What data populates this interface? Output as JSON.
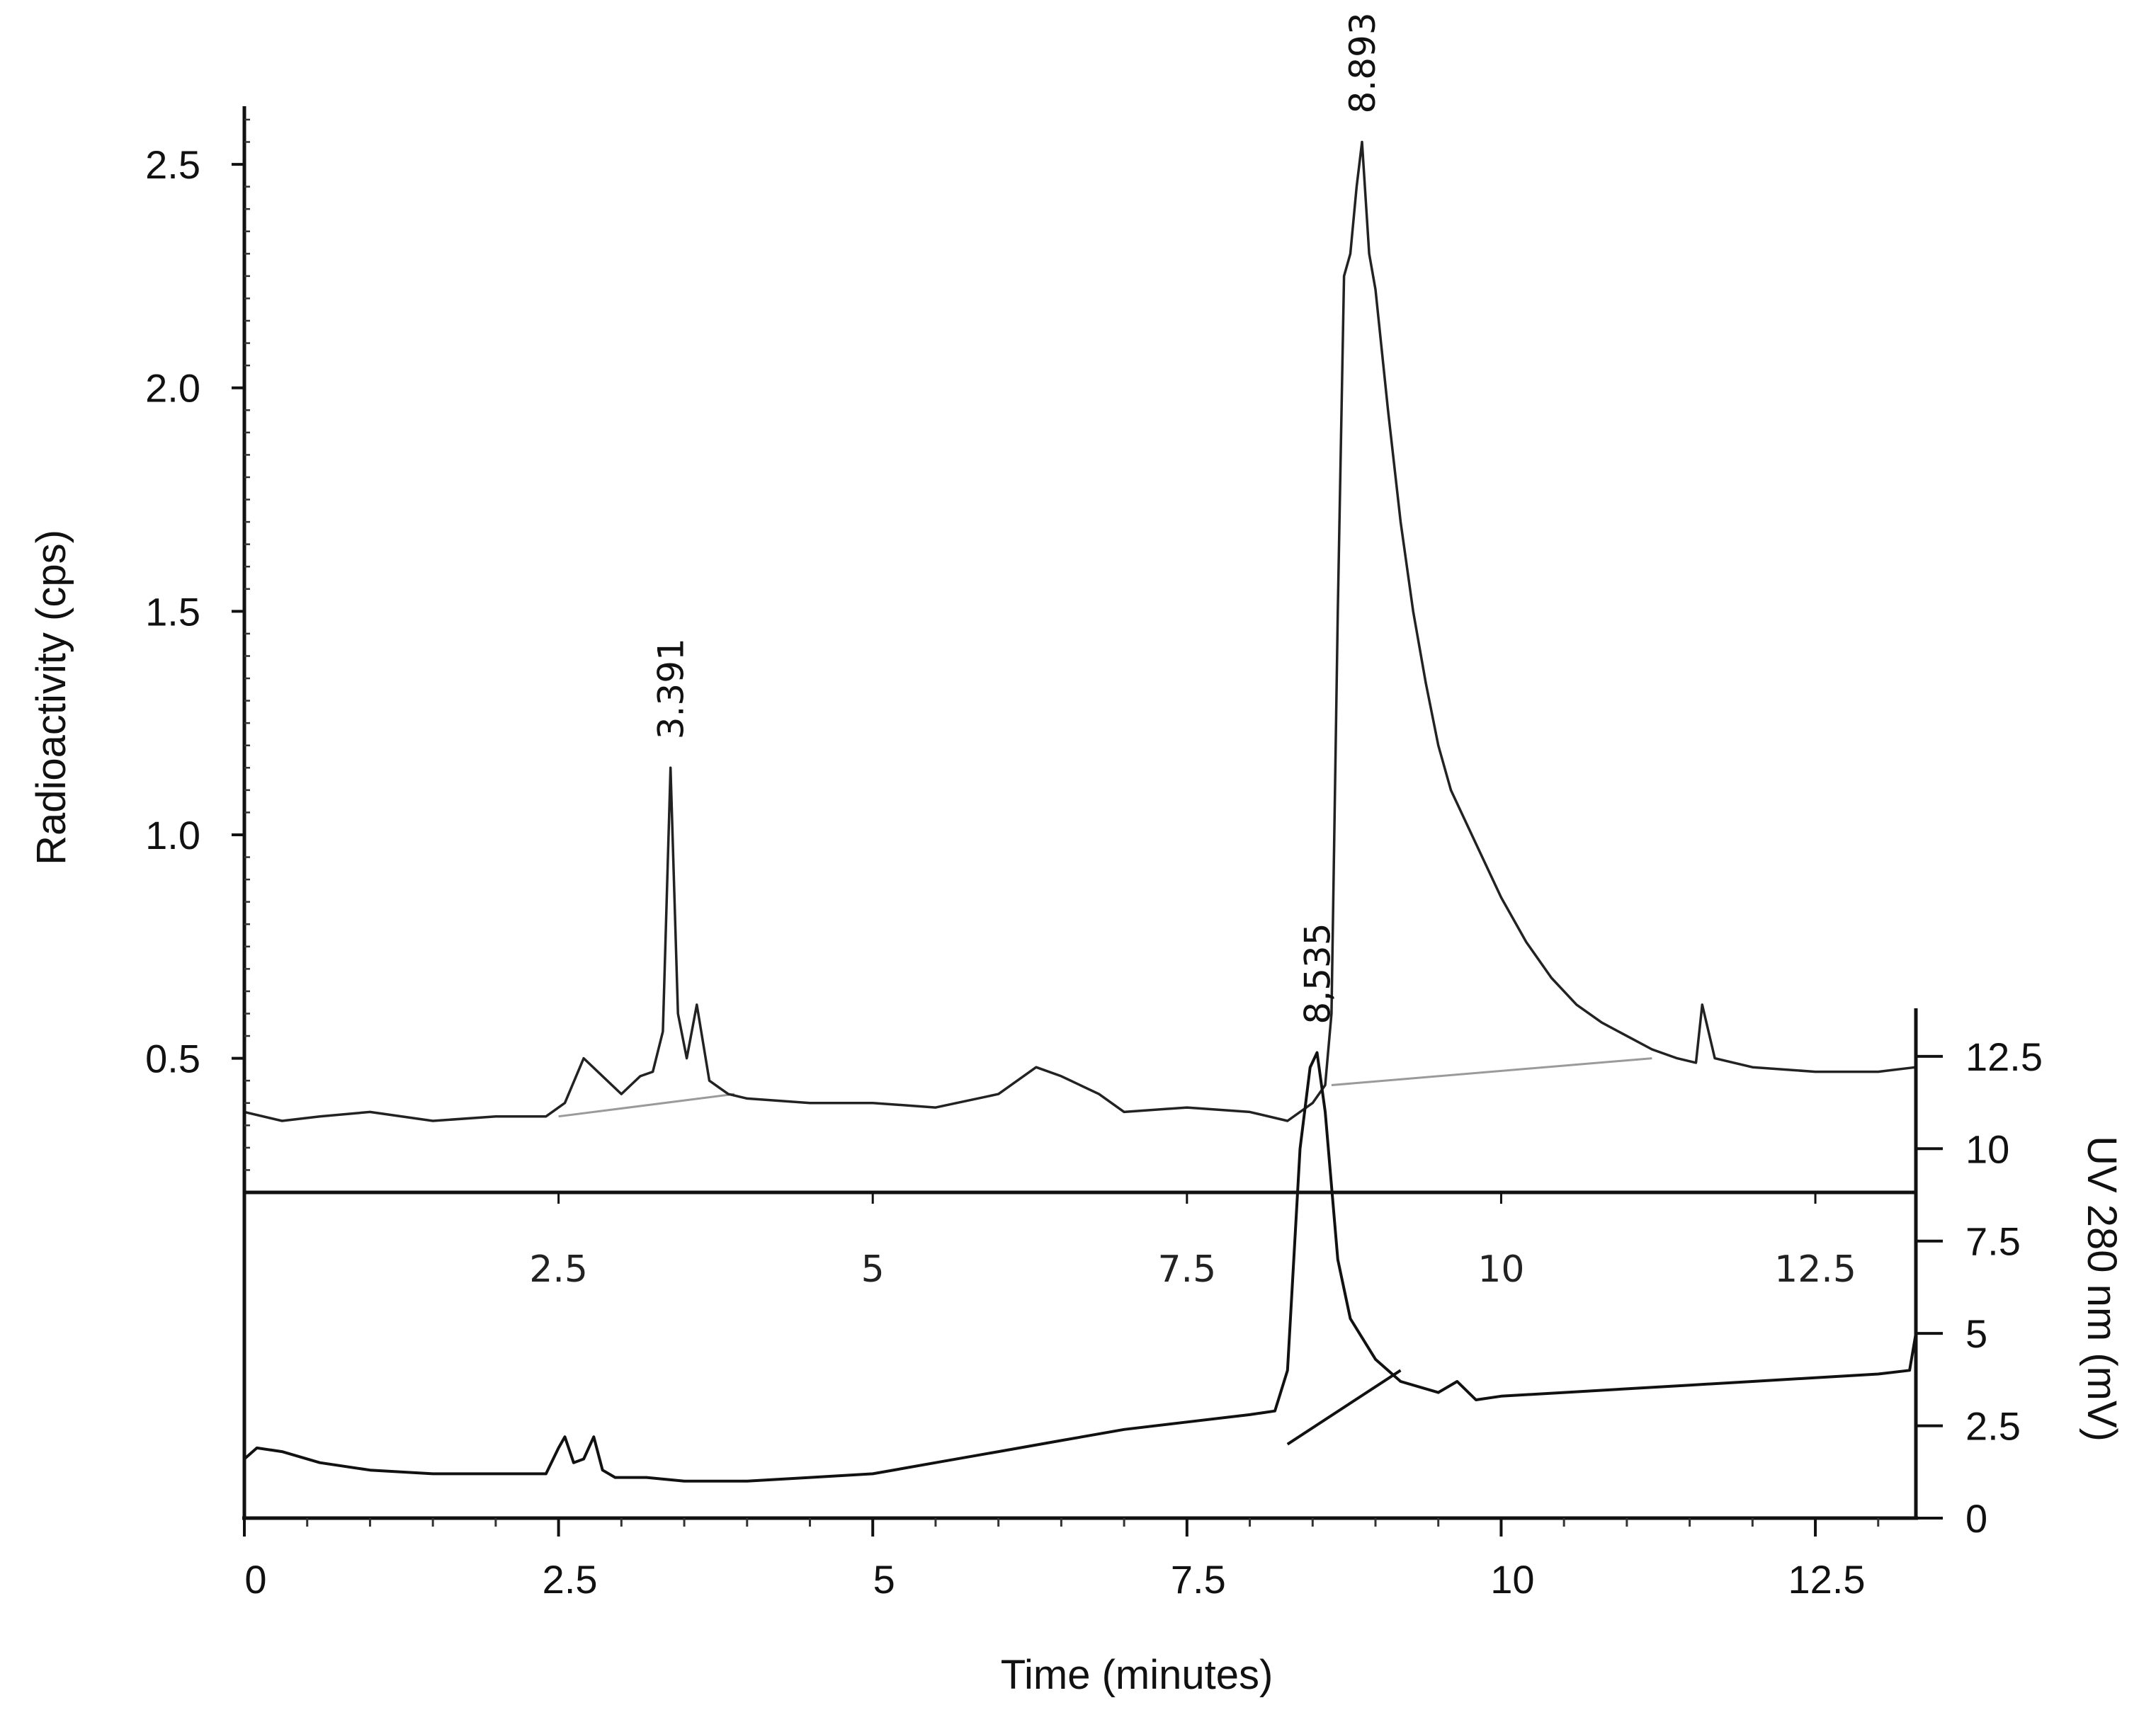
{
  "chart_data": {
    "type": "line",
    "title": "",
    "x_axis": {
      "label": "Time (minutes)",
      "range": [
        0,
        13.3
      ],
      "ticks": [
        0,
        2.5,
        5,
        7.5,
        10,
        12.5
      ],
      "tick_labels": [
        "0",
        "2.5",
        "5",
        "7.5",
        "10",
        "12.5"
      ],
      "inner_ticks": [
        2.5,
        5,
        7.5,
        10,
        12.5
      ],
      "inner_tick_labels": [
        "2.5",
        "5",
        "7.5",
        "10",
        "12.5"
      ]
    },
    "y_axis_left": {
      "label": "Radioactivity (cps)",
      "range": [
        0.2,
        2.63
      ],
      "ticks": [
        0.5,
        1.0,
        1.5,
        2.0,
        2.5
      ],
      "tick_labels": [
        "0.5",
        "1.0",
        "1.5",
        "2.0",
        "2.5"
      ]
    },
    "y_axis_right": {
      "label": "UV 280 nm (mV)",
      "range": [
        0,
        13.8
      ],
      "ticks": [
        0,
        2.5,
        5,
        7.5,
        10,
        12.5
      ],
      "tick_labels": [
        "0",
        "2.5",
        "5",
        "7.5",
        "10",
        "12.5"
      ]
    },
    "series": [
      {
        "axis": "left",
        "color": "#222222",
        "x": [
          0,
          0.3,
          0.6,
          1.0,
          1.5,
          2.0,
          2.4,
          2.55,
          2.7,
          2.85,
          3.0,
          3.15,
          3.25,
          3.33,
          3.391,
          3.45,
          3.52,
          3.6,
          3.7,
          3.85,
          4.0,
          4.5,
          5.0,
          5.5,
          6.0,
          6.3,
          6.5,
          6.8,
          7.0,
          7.5,
          8.0,
          8.3,
          8.5,
          8.6,
          8.65,
          8.7,
          8.75,
          8.8,
          8.85,
          8.893,
          8.95,
          9.0,
          9.1,
          9.2,
          9.3,
          9.4,
          9.5,
          9.6,
          9.8,
          10.0,
          10.2,
          10.4,
          10.6,
          10.8,
          11.0,
          11.2,
          11.4,
          11.55,
          11.6,
          11.7,
          12.0,
          12.5,
          13.0,
          13.3
        ],
        "y": [
          0.38,
          0.36,
          0.37,
          0.38,
          0.36,
          0.37,
          0.37,
          0.4,
          0.5,
          0.46,
          0.42,
          0.46,
          0.47,
          0.56,
          1.15,
          0.6,
          0.5,
          0.62,
          0.45,
          0.42,
          0.41,
          0.4,
          0.4,
          0.39,
          0.42,
          0.48,
          0.46,
          0.42,
          0.38,
          0.39,
          0.38,
          0.36,
          0.4,
          0.44,
          0.6,
          1.5,
          2.25,
          2.3,
          2.45,
          2.55,
          2.3,
          2.22,
          1.95,
          1.7,
          1.5,
          1.34,
          1.2,
          1.1,
          0.98,
          0.86,
          0.76,
          0.68,
          0.62,
          0.58,
          0.55,
          0.52,
          0.5,
          0.49,
          0.62,
          0.5,
          0.48,
          0.47,
          0.47,
          0.48
        ]
      },
      {
        "axis": "right",
        "color": "#111111",
        "x": [
          0,
          0.1,
          0.3,
          0.6,
          1.0,
          1.5,
          2.0,
          2.4,
          2.5,
          2.55,
          2.62,
          2.7,
          2.78,
          2.85,
          2.95,
          3.2,
          3.5,
          4.0,
          4.5,
          5.0,
          5.5,
          6.0,
          6.5,
          7.0,
          7.5,
          8.0,
          8.2,
          8.3,
          8.4,
          8.48,
          8.535,
          8.6,
          8.7,
          8.8,
          9.0,
          9.2,
          9.5,
          9.65,
          9.8,
          10.0,
          10.5,
          11.0,
          11.5,
          12.0,
          12.5,
          13.0,
          13.25,
          13.3
        ],
        "y": [
          1.6,
          1.9,
          1.8,
          1.5,
          1.3,
          1.2,
          1.2,
          1.2,
          1.9,
          2.2,
          1.5,
          1.6,
          2.2,
          1.3,
          1.1,
          1.1,
          1.0,
          1.0,
          1.1,
          1.2,
          1.5,
          1.8,
          2.1,
          2.4,
          2.6,
          2.8,
          2.9,
          4.0,
          10.0,
          12.2,
          12.6,
          11.0,
          7.0,
          5.4,
          4.3,
          3.7,
          3.4,
          3.7,
          3.2,
          3.3,
          3.4,
          3.5,
          3.6,
          3.7,
          3.8,
          3.9,
          4.0,
          5.0
        ]
      }
    ],
    "baselines": [
      {
        "axis": "left",
        "x": [
          2.5,
          3.9
        ],
        "y": [
          0.37,
          0.42
        ]
      },
      {
        "axis": "left",
        "x": [
          8.65,
          11.2
        ],
        "y": [
          0.44,
          0.5
        ]
      },
      {
        "axis": "right",
        "x": [
          8.3,
          9.2
        ],
        "y": [
          2.0,
          4.0
        ]
      }
    ],
    "peak_labels": [
      {
        "text": "3.391",
        "x": 3.391,
        "axis": "left",
        "y": 1.15
      },
      {
        "text": "8.893",
        "x": 8.893,
        "axis": "left",
        "y": 2.55
      },
      {
        "text": "8,535",
        "x": 8.535,
        "axis": "right",
        "y": 12.6
      }
    ],
    "legend": "none",
    "grid": false
  }
}
